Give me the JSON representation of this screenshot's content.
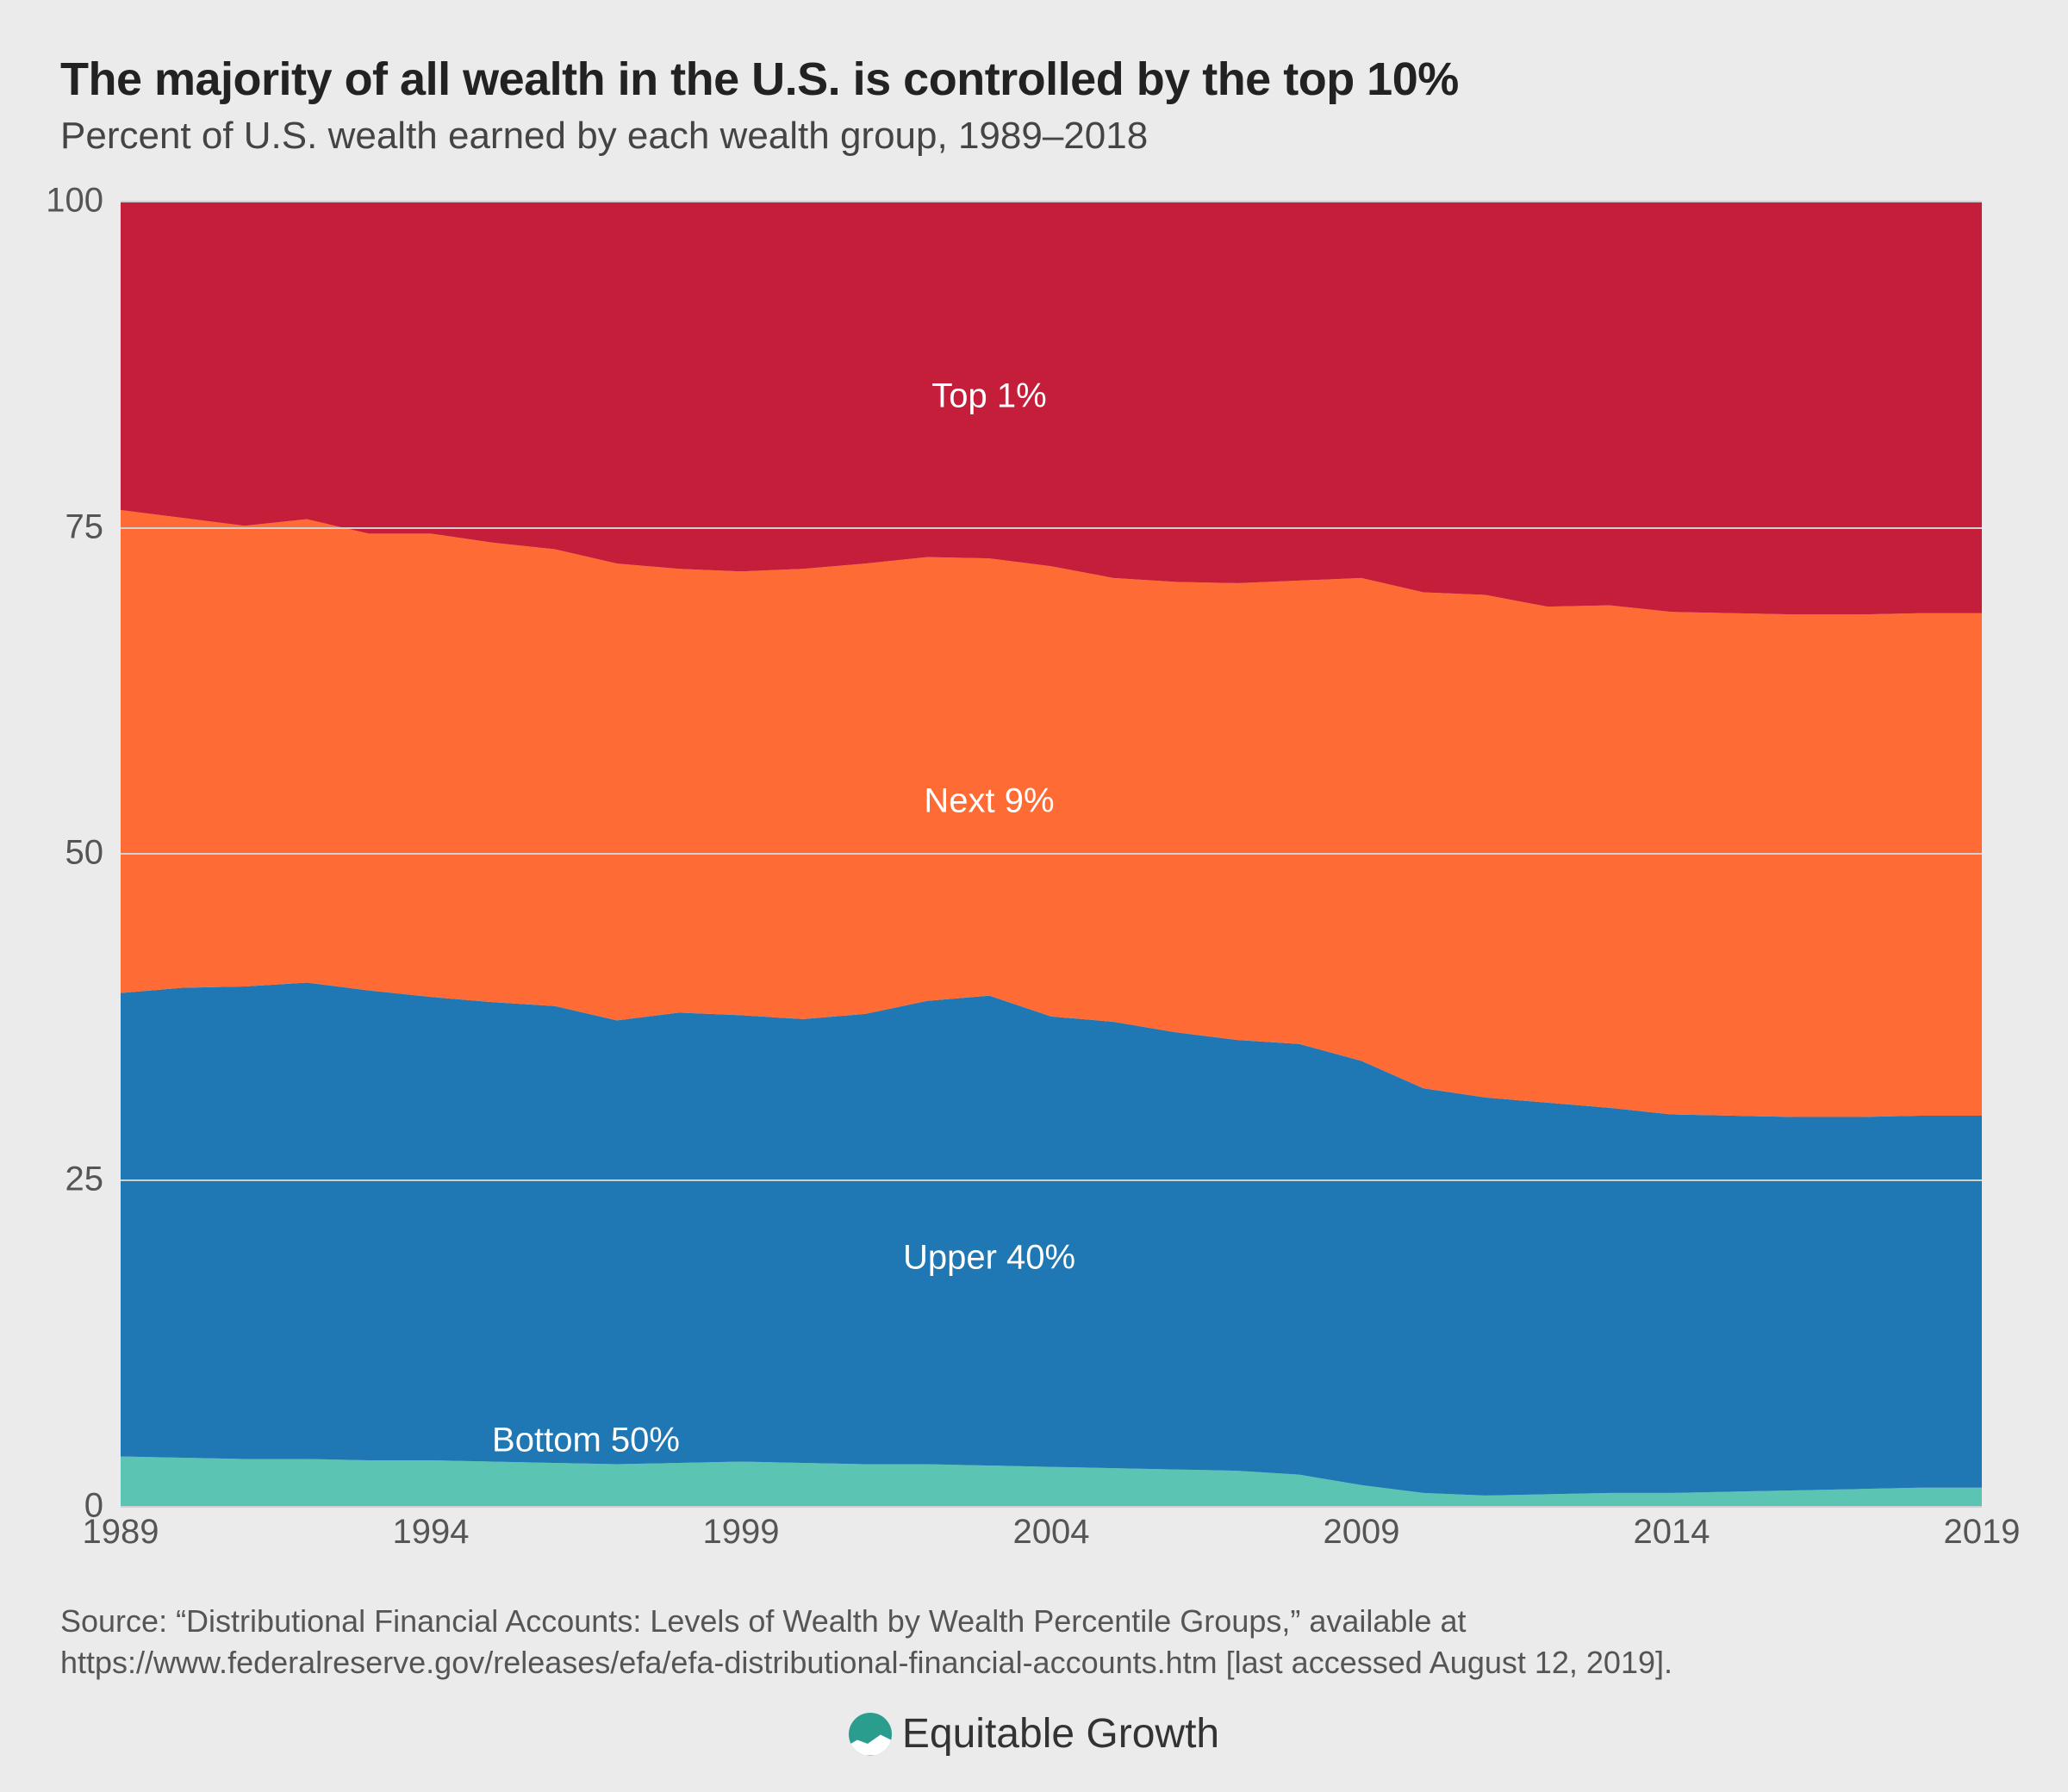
{
  "title": "The majority of all wealth in the U.S. is controlled by the top 10%",
  "subtitle": "Percent of U.S. wealth earned by each wealth group, 1989–2018",
  "source": "Source: “Distributional Financial Accounts: Levels of Wealth by Wealth Percentile Groups,” available at https://www.federalreserve.gov/releases/efa/efa-distributional-financial-accounts.htm [last accessed August 12, 2019].",
  "brand": "Equitable Growth",
  "chart": {
    "type": "area-stacked",
    "background_color": "#ebebeb",
    "grid_color": "#d0d0d0",
    "axis_text_color": "#555555",
    "axis_fontsize": 40,
    "ylim": [
      0,
      100
    ],
    "yticks": [
      0,
      25,
      50,
      75,
      100
    ],
    "xlim": [
      1989,
      2019
    ],
    "xticks": [
      1989,
      1994,
      1999,
      2004,
      2009,
      2014,
      2019
    ],
    "years": [
      1989,
      1990,
      1991,
      1992,
      1993,
      1994,
      1995,
      1996,
      1997,
      1998,
      1999,
      2000,
      2001,
      2002,
      2003,
      2004,
      2005,
      2006,
      2007,
      2008,
      2009,
      2010,
      2011,
      2012,
      2013,
      2014,
      2015,
      2016,
      2017,
      2018,
      2019
    ],
    "series": [
      {
        "name": "Bottom 50%",
        "label": "Bottom 50%",
        "color": "#5bc4b3",
        "label_color": "#ffffff",
        "label_x": 1996.5,
        "label_y": 5,
        "values": [
          3.8,
          3.7,
          3.6,
          3.6,
          3.5,
          3.5,
          3.4,
          3.3,
          3.2,
          3.3,
          3.4,
          3.3,
          3.2,
          3.2,
          3.1,
          3.0,
          2.9,
          2.8,
          2.7,
          2.4,
          1.6,
          1.0,
          0.8,
          0.9,
          1.0,
          1.0,
          1.1,
          1.2,
          1.3,
          1.4,
          1.4
        ]
      },
      {
        "name": "Upper 40%",
        "label": "Upper 40%",
        "color": "#1f77b4",
        "label_color": "#ffffff",
        "label_x": 2003,
        "label_y": 19,
        "values": [
          35.5,
          36.0,
          36.2,
          36.5,
          36.0,
          35.5,
          35.2,
          35.0,
          34.0,
          34.5,
          34.2,
          34.0,
          34.5,
          35.5,
          36.0,
          34.5,
          34.2,
          33.5,
          33.0,
          33.0,
          32.5,
          31.0,
          30.5,
          30.0,
          29.5,
          29.0,
          28.8,
          28.6,
          28.5,
          28.5,
          28.5
        ]
      },
      {
        "name": "Next 9%",
        "label": "Next 9%",
        "color": "#ff6b35",
        "label_color": "#ffffff",
        "label_x": 2003,
        "label_y": 54,
        "values": [
          37.0,
          36.0,
          35.3,
          35.5,
          35.0,
          35.5,
          35.2,
          35.0,
          35.0,
          34.0,
          34.0,
          34.5,
          34.5,
          34.0,
          33.5,
          34.5,
          34.0,
          34.5,
          35.0,
          35.5,
          37.0,
          38.0,
          38.5,
          38.0,
          38.5,
          38.5,
          38.5,
          38.5,
          38.5,
          38.5,
          38.5
        ]
      },
      {
        "name": "Top 1%",
        "label": "Top 1%",
        "color": "#c41e3a",
        "label_color": "#ffffff",
        "label_x": 2003,
        "label_y": 85,
        "values": [
          23.7,
          24.3,
          24.9,
          24.4,
          25.5,
          25.5,
          26.2,
          26.7,
          27.8,
          28.2,
          28.4,
          28.2,
          27.8,
          27.3,
          27.4,
          28.0,
          28.9,
          29.2,
          29.3,
          29.1,
          28.9,
          30.0,
          30.2,
          31.1,
          31.0,
          31.5,
          31.6,
          31.7,
          31.7,
          31.6,
          31.6
        ]
      }
    ]
  }
}
